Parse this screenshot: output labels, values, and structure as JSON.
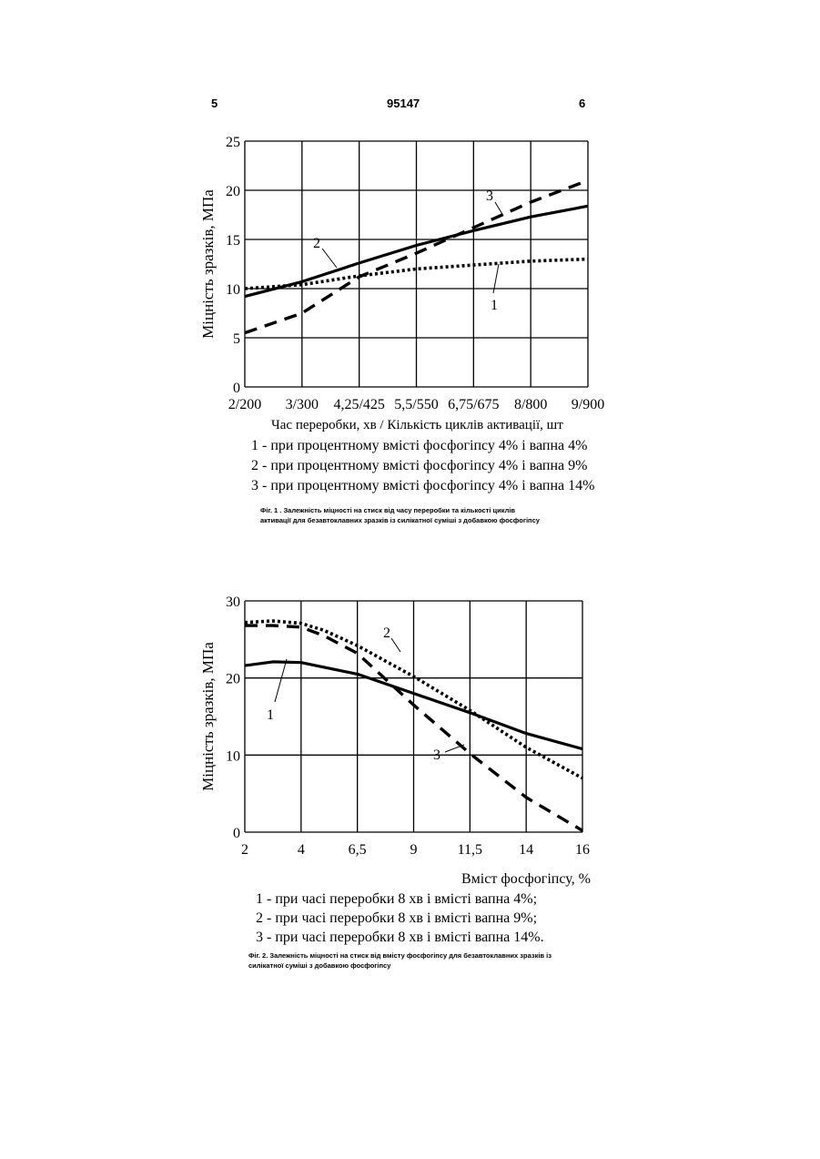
{
  "header": {
    "page_left": "5",
    "patent_number": "95147",
    "page_right": "6"
  },
  "chart_data": [
    {
      "type": "line",
      "ylabel": "Міцність зразків, МПа",
      "xlabel": "Час переробки, хв / Кількість циклів активації, шт",
      "ylim": [
        0,
        25
      ],
      "yticks": [
        "0",
        "5",
        "10",
        "15",
        "20",
        "25"
      ],
      "xticks": [
        "2/200",
        "3/300",
        "4,25/425",
        "5,5/550",
        "6,75/675",
        "8/800",
        "9/900"
      ],
      "x_values": [
        2,
        3,
        4.25,
        5.5,
        6.75,
        8,
        9
      ],
      "xlim": [
        2,
        9
      ],
      "grid": true,
      "series": [
        {
          "name": "1",
          "style": "dotted",
          "x": [
            2,
            3,
            4.25,
            5.5,
            6.75,
            8,
            9
          ],
          "values": [
            10.0,
            10.4,
            11.3,
            12.0,
            12.4,
            12.8,
            13.0
          ]
        },
        {
          "name": "2",
          "style": "solid",
          "x": [
            2,
            3,
            4.25,
            5.5,
            6.75,
            8,
            9
          ],
          "values": [
            9.2,
            10.7,
            12.6,
            14.4,
            15.9,
            17.3,
            18.4
          ]
        },
        {
          "name": "3",
          "style": "dashed",
          "x": [
            2,
            3,
            4.25,
            5.5,
            6.75,
            8,
            9
          ],
          "values": [
            5.5,
            7.5,
            11.2,
            13.6,
            16.2,
            18.8,
            21.0
          ]
        }
      ],
      "legend": [
        "1 - при процентному вмісті фосфогіпсу 4% і вапна 4%",
        "2 - при процентному вмісті фосфогіпсу 4% і вапна 9%",
        "3 - при процентному вмісті фосфогіпсу 4% і вапна 14%"
      ],
      "caption": [
        "Фіг. 1 . Залежність міцності на стиск від часу переробки та кількості циклів",
        "активації для безавтоклавних зразків  із силікатної суміші з добавкою фосфогіпсу"
      ]
    },
    {
      "type": "line",
      "ylabel": "Міцність зразків, МПа",
      "xlabel": "Вміст фосфогіпсу, %",
      "ylim": [
        0,
        30
      ],
      "yticks": [
        "0",
        "10",
        "20",
        "30"
      ],
      "xticks": [
        "2",
        "4",
        "6,5",
        "9",
        "11,5",
        "14",
        "16"
      ],
      "x_values": [
        2,
        4,
        6.5,
        9,
        11.5,
        14,
        16
      ],
      "xlim": [
        2,
        16
      ],
      "grid": true,
      "series": [
        {
          "name": "1",
          "style": "solid",
          "x": [
            2,
            3,
            4,
            6.5,
            9,
            11.5,
            14,
            16
          ],
          "values": [
            21.6,
            22.1,
            22.0,
            20.5,
            18.0,
            15.5,
            12.8,
            10.8
          ]
        },
        {
          "name": "2",
          "style": "dotted",
          "x": [
            2,
            3,
            4,
            5,
            6.5,
            9,
            11.5,
            14,
            16
          ],
          "values": [
            27.2,
            27.4,
            27.1,
            26.2,
            24.2,
            20.2,
            15.8,
            11.0,
            7.0
          ]
        },
        {
          "name": "3",
          "style": "dashed",
          "x": [
            2,
            3,
            4,
            5,
            6.5,
            9,
            11.5,
            14,
            16
          ],
          "values": [
            26.8,
            26.8,
            26.6,
            25.5,
            23.2,
            16.5,
            10.2,
            4.5,
            0.2
          ]
        }
      ],
      "legend": [
        "1 - при часі переробки 8 хв і вмісті вапна 4%;",
        "2 - при часі переробки 8 хв і вмісті вапна 9%;",
        "3 - при часі переробки 8 хв і вмісті вапна 14%."
      ],
      "caption": [
        "Фіг. 2. Залежність міцності на стиск від вмісту фосфогіпсу для безавтоклавних зразків із",
        "силікатної суміші з добавкою фосфогіпсу"
      ]
    }
  ]
}
